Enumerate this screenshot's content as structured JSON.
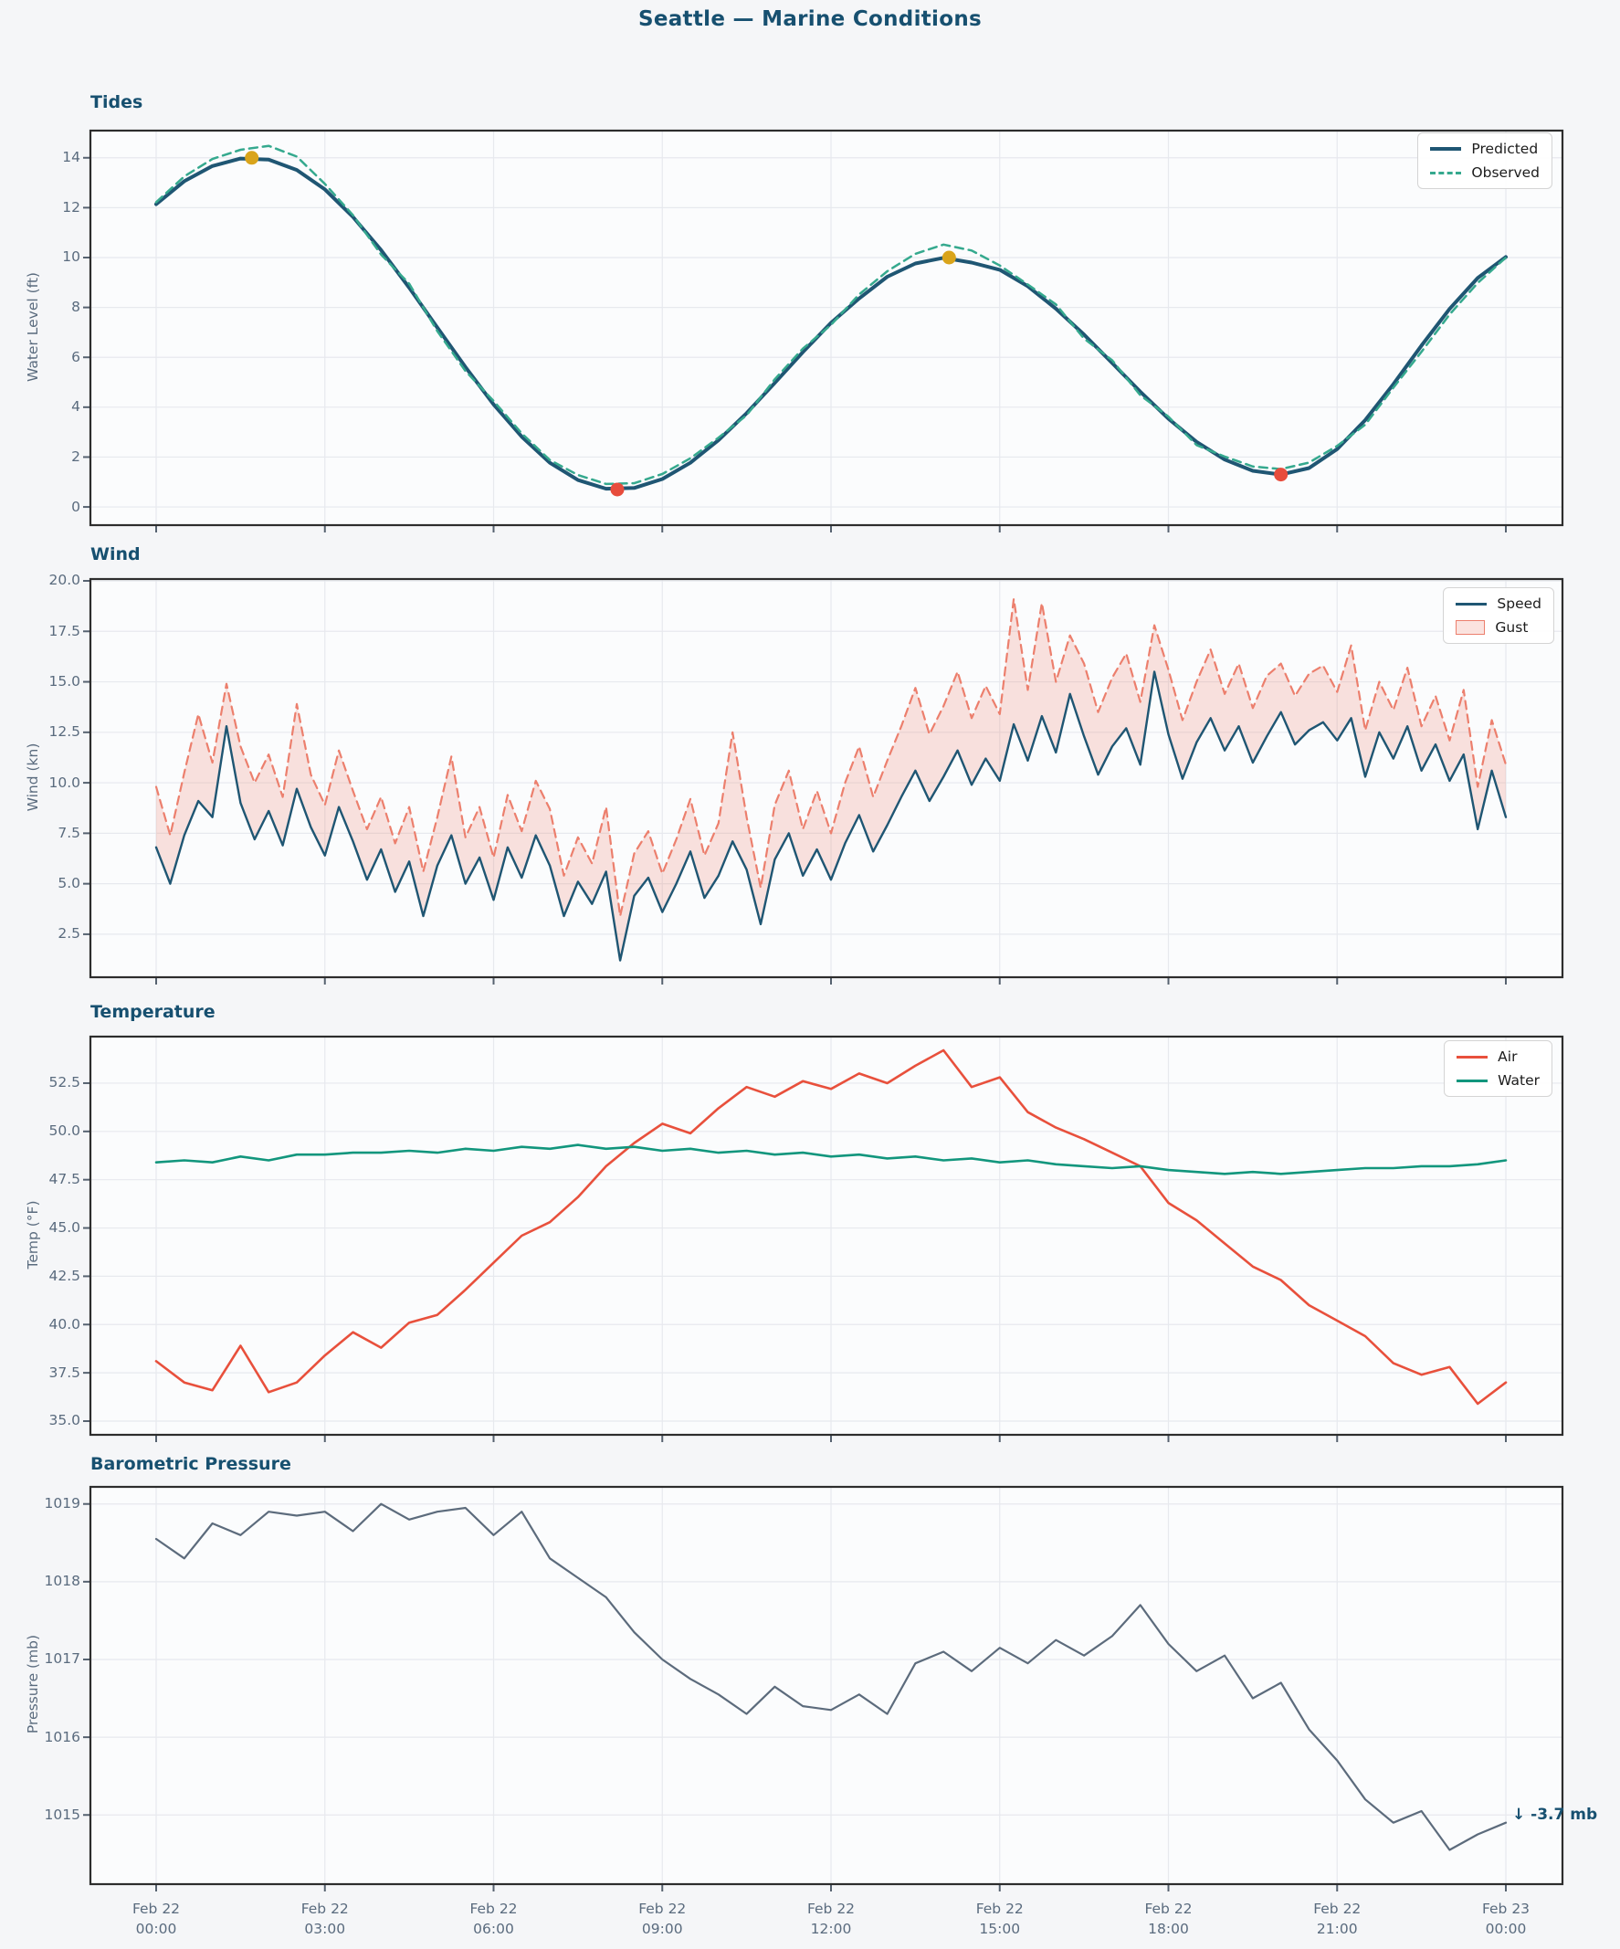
{
  "page": {
    "title": "Seattle — Marine Conditions"
  },
  "colors": {
    "figure_bg": "#f5f6f8",
    "axes_bg": "#fbfcfd",
    "grid": "#e7e9ee",
    "spine": "#2d2d2d",
    "tick": "#566270",
    "tick_label": "#5a6b7e",
    "heading": "#175070",
    "predicted": "#1f5673",
    "observed": "#35a98e",
    "speed": "#1f5673",
    "gust": "#ec7f6d",
    "gust_fill": "rgba(238,126,109,0.22)",
    "air": "#e8503c",
    "water": "#12967d",
    "pressure": "#5c6b7c",
    "high_tide_marker": "#d9a41b",
    "low_tide_marker": "#e74c3c"
  },
  "x_ticks": [
    {
      "top": "Feb 22",
      "bottom": "00:00",
      "hours": 0
    },
    {
      "top": "Feb 22",
      "bottom": "03:00",
      "hours": 3
    },
    {
      "top": "Feb 22",
      "bottom": "06:00",
      "hours": 6
    },
    {
      "top": "Feb 22",
      "bottom": "09:00",
      "hours": 9
    },
    {
      "top": "Feb 22",
      "bottom": "12:00",
      "hours": 12
    },
    {
      "top": "Feb 22",
      "bottom": "15:00",
      "hours": 15
    },
    {
      "top": "Feb 22",
      "bottom": "18:00",
      "hours": 18
    },
    {
      "top": "Feb 22",
      "bottom": "21:00",
      "hours": 21
    },
    {
      "top": "Feb 23",
      "bottom": "00:00",
      "hours": 24
    }
  ],
  "chart_data": [
    {
      "type": "line",
      "title": "Tides",
      "ylabel": "Water Level (ft)",
      "ylim": [
        -0.7,
        15.1
      ],
      "yticks": [
        "0",
        "2",
        "4",
        "6",
        "8",
        "10",
        "12",
        "14"
      ],
      "ytick_values": [
        0,
        2,
        4,
        6,
        8,
        10,
        12,
        14
      ],
      "x_hours_start": 0,
      "x_hours_step": 0.5,
      "legend_position": "upper right",
      "series": [
        {
          "name": "Predicted",
          "color": "#1f5673",
          "style": "solid",
          "width": 4,
          "values": [
            12.14,
            13.06,
            13.67,
            13.97,
            13.93,
            13.51,
            12.73,
            11.63,
            10.3,
            8.79,
            7.19,
            5.61,
            4.11,
            2.82,
            1.77,
            1.08,
            0.73,
            0.76,
            1.12,
            1.77,
            2.68,
            3.76,
            4.97,
            6.21,
            7.38,
            8.36,
            9.23,
            9.76,
            9.99,
            9.8,
            9.51,
            8.85,
            7.95,
            6.91,
            5.77,
            4.62,
            3.54,
            2.61,
            1.9,
            1.45,
            1.3,
            1.56,
            2.32,
            3.48,
            4.92,
            6.47,
            7.94,
            9.18,
            10.02
          ]
        },
        {
          "name": "Observed",
          "color": "#35a98e",
          "style": "dashed",
          "width": 2.5,
          "values": [
            12.22,
            13.25,
            13.95,
            14.32,
            14.48,
            14.05,
            12.95,
            11.7,
            10.12,
            8.95,
            7.05,
            5.45,
            4.25,
            2.95,
            1.88,
            1.28,
            0.92,
            0.95,
            1.32,
            1.95,
            2.78,
            3.68,
            5.12,
            6.35,
            7.3,
            8.52,
            9.45,
            10.15,
            10.52,
            10.28,
            9.68,
            8.92,
            8.12,
            6.75,
            5.88,
            4.48,
            3.62,
            2.48,
            2.02,
            1.62,
            1.52,
            1.78,
            2.45,
            3.3,
            4.78,
            6.22,
            7.72,
            8.98,
            10.0
          ]
        }
      ],
      "markers": [
        {
          "name": "high-tide",
          "color": "#d9a41b",
          "points": [
            [
              1.7,
              14.0
            ],
            [
              14.1,
              10.0
            ]
          ]
        },
        {
          "name": "low-tide",
          "color": "#e74c3c",
          "points": [
            [
              8.2,
              0.7
            ],
            [
              20.0,
              1.3
            ]
          ]
        }
      ]
    },
    {
      "type": "line",
      "title": "Wind",
      "ylabel": "Wind (kn)",
      "ylim": [
        0.4,
        20.1
      ],
      "yticks": [
        "2.5",
        "5.0",
        "7.5",
        "10.0",
        "12.5",
        "15.0",
        "17.5",
        "20.0"
      ],
      "ytick_values": [
        2.5,
        5,
        7.5,
        10,
        12.5,
        15,
        17.5,
        20
      ],
      "x_hours_start": 0,
      "x_hours_step": 0.25,
      "legend_position": "upper right",
      "fill": {
        "between": [
          "Speed",
          "Gust"
        ],
        "color": "rgba(238,126,109,0.22)"
      },
      "series": [
        {
          "name": "Speed",
          "color": "#1f5673",
          "style": "solid",
          "width": 2.4,
          "values": [
            6.8,
            5.0,
            7.4,
            9.1,
            8.3,
            12.8,
            9.0,
            7.2,
            8.6,
            6.9,
            9.7,
            7.8,
            6.4,
            8.8,
            7.1,
            5.2,
            6.7,
            4.6,
            6.1,
            3.4,
            5.9,
            7.4,
            5.0,
            6.3,
            4.2,
            6.8,
            5.3,
            7.4,
            5.9,
            3.4,
            5.1,
            4.0,
            5.6,
            1.2,
            4.4,
            5.3,
            3.6,
            5.0,
            6.6,
            4.3,
            5.4,
            7.1,
            5.7,
            3.0,
            6.2,
            7.5,
            5.4,
            6.7,
            5.2,
            7.0,
            8.4,
            6.6,
            7.9,
            9.3,
            10.6,
            9.1,
            10.3,
            11.6,
            9.9,
            11.2,
            10.1,
            12.9,
            11.1,
            13.3,
            11.5,
            14.4,
            12.3,
            10.4,
            11.8,
            12.7,
            10.9,
            15.5,
            12.4,
            10.2,
            12.0,
            13.2,
            11.6,
            12.8,
            11.0,
            12.3,
            13.5,
            11.9,
            12.6,
            13.0,
            12.1,
            13.2,
            10.3,
            12.5,
            11.2,
            12.8,
            10.6,
            11.9,
            10.1,
            11.4,
            7.7,
            10.6,
            8.3
          ]
        },
        {
          "name": "Gust",
          "color": "#ec7f6d",
          "style": "dashed",
          "width": 2.2,
          "values": [
            9.8,
            7.4,
            10.5,
            13.4,
            11.0,
            14.9,
            11.8,
            10.0,
            11.4,
            9.3,
            13.9,
            10.4,
            8.9,
            11.6,
            9.6,
            7.7,
            9.3,
            7.0,
            8.8,
            5.6,
            8.3,
            11.3,
            7.3,
            8.8,
            6.3,
            9.4,
            7.6,
            10.1,
            8.7,
            5.4,
            7.3,
            6.0,
            8.8,
            3.4,
            6.5,
            7.6,
            5.5,
            7.2,
            9.2,
            6.4,
            8.0,
            12.5,
            8.3,
            4.8,
            8.9,
            10.6,
            7.7,
            9.6,
            7.5,
            10.0,
            11.8,
            9.3,
            11.1,
            12.8,
            14.7,
            12.4,
            13.8,
            15.5,
            13.2,
            14.8,
            13.4,
            19.1,
            14.6,
            18.9,
            15.0,
            17.3,
            15.9,
            13.5,
            15.2,
            16.4,
            14.0,
            17.8,
            15.6,
            13.1,
            15.0,
            16.6,
            14.4,
            15.9,
            13.7,
            15.3,
            15.9,
            14.3,
            15.4,
            15.8,
            14.5,
            16.8,
            12.6,
            15.0,
            13.6,
            15.7,
            12.8,
            14.3,
            12.1,
            14.6,
            9.8,
            13.1,
            10.9
          ]
        }
      ]
    },
    {
      "type": "line",
      "title": "Temperature",
      "ylabel": "Temp (°F)",
      "ylim": [
        34.3,
        54.9
      ],
      "yticks": [
        "35.0",
        "37.5",
        "40.0",
        "42.5",
        "45.0",
        "47.5",
        "50.0",
        "52.5"
      ],
      "ytick_values": [
        35,
        37.5,
        40,
        42.5,
        45,
        47.5,
        50,
        52.5
      ],
      "x_hours_start": 0,
      "x_hours_step": 0.5,
      "legend_position": "upper right",
      "series": [
        {
          "name": "Air",
          "color": "#e8503c",
          "style": "solid",
          "width": 2.6,
          "values": [
            38.1,
            37.0,
            36.6,
            38.9,
            36.5,
            37.0,
            38.4,
            39.6,
            38.8,
            40.1,
            40.5,
            41.8,
            43.2,
            44.6,
            45.3,
            46.6,
            48.2,
            49.4,
            50.4,
            49.9,
            51.2,
            52.3,
            51.8,
            52.6,
            52.2,
            53.0,
            52.5,
            53.4,
            54.2,
            52.3,
            52.8,
            51.0,
            50.2,
            49.6,
            48.9,
            48.2,
            46.3,
            45.4,
            44.2,
            43.0,
            42.3,
            41.0,
            40.2,
            39.4,
            38.0,
            37.4,
            37.8,
            35.9,
            37.0
          ]
        },
        {
          "name": "Water",
          "color": "#12967d",
          "style": "solid",
          "width": 2.6,
          "values": [
            48.4,
            48.5,
            48.4,
            48.7,
            48.5,
            48.8,
            48.8,
            48.9,
            48.9,
            49.0,
            48.9,
            49.1,
            49.0,
            49.2,
            49.1,
            49.3,
            49.1,
            49.2,
            49.0,
            49.1,
            48.9,
            49.0,
            48.8,
            48.9,
            48.7,
            48.8,
            48.6,
            48.7,
            48.5,
            48.6,
            48.4,
            48.5,
            48.3,
            48.2,
            48.1,
            48.2,
            48.0,
            47.9,
            47.8,
            47.9,
            47.8,
            47.9,
            48.0,
            48.1,
            48.1,
            48.2,
            48.2,
            48.3,
            48.5
          ]
        }
      ]
    },
    {
      "type": "line",
      "title": "Barometric Pressure",
      "ylabel": "Pressure (mb)",
      "ylim": [
        1014.1,
        1019.2
      ],
      "yticks": [
        "1015",
        "1016",
        "1017",
        "1018",
        "1019"
      ],
      "ytick_values": [
        1015,
        1016,
        1017,
        1018,
        1019
      ],
      "x_hours_start": 0,
      "x_hours_step": 0.5,
      "annotation": {
        "text": "↓ -3.7 mb",
        "x_hours": 24.2,
        "y": 1014.95
      },
      "series": [
        {
          "name": "Pressure",
          "color": "#5c6b7c",
          "style": "solid",
          "width": 2.2,
          "values": [
            1018.55,
            1018.3,
            1018.75,
            1018.6,
            1018.9,
            1018.85,
            1018.9,
            1018.65,
            1019.0,
            1018.8,
            1018.9,
            1018.95,
            1018.6,
            1018.9,
            1018.3,
            1018.05,
            1017.8,
            1017.35,
            1017.0,
            1016.75,
            1016.55,
            1016.3,
            1016.65,
            1016.4,
            1016.35,
            1016.55,
            1016.3,
            1016.95,
            1017.1,
            1016.85,
            1017.15,
            1016.95,
            1017.25,
            1017.05,
            1017.3,
            1017.7,
            1017.2,
            1016.85,
            1017.05,
            1016.5,
            1016.7,
            1016.1,
            1015.7,
            1015.2,
            1014.9,
            1015.05,
            1014.55,
            1014.75,
            1014.9
          ]
        }
      ]
    }
  ]
}
